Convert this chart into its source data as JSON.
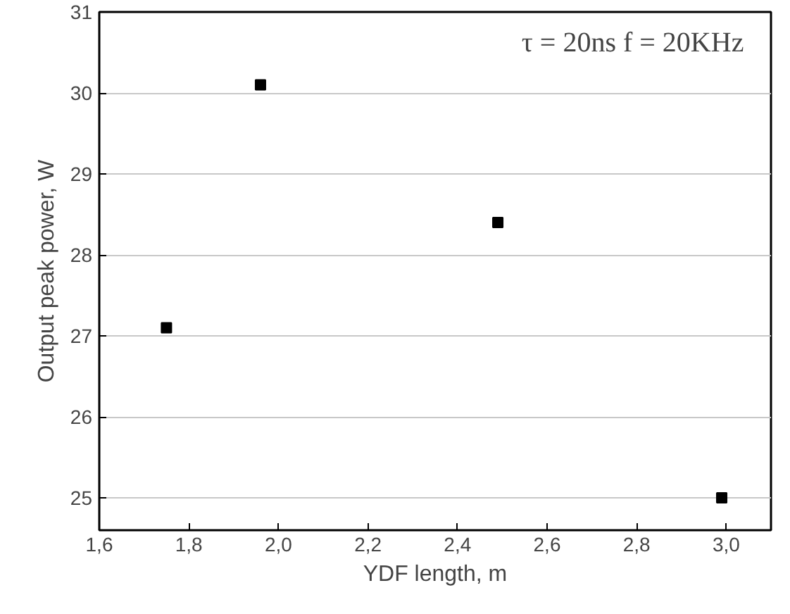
{
  "chart_data": {
    "type": "scatter",
    "xlabel": "YDF length, m",
    "ylabel": "Output peak power, W",
    "annotations": [
      {
        "text": "τ = 20ns  f = 20KHz"
      }
    ],
    "x": [
      1.75,
      1.96,
      2.49,
      2.99
    ],
    "series": [
      {
        "color": "#000000",
        "values": [
          27.1,
          30.1,
          28.4,
          25.0
        ]
      }
    ],
    "xlim": [
      1.6,
      3.1
    ],
    "ylim": [
      24.6,
      31
    ],
    "xticks": [
      {
        "value": 1.6,
        "label": "1,6"
      },
      {
        "value": 1.8,
        "label": "1,8"
      },
      {
        "value": 2.0,
        "label": "2,0"
      },
      {
        "value": 2.2,
        "label": "2,2"
      },
      {
        "value": 2.4,
        "label": "2,4"
      },
      {
        "value": 2.6,
        "label": "2,6"
      },
      {
        "value": 2.8,
        "label": "2,8"
      },
      {
        "value": 3.0,
        "label": "3,0"
      }
    ],
    "yticks": [
      25,
      26,
      27,
      28,
      29,
      30,
      31
    ],
    "grid": "y",
    "marker": "square"
  }
}
